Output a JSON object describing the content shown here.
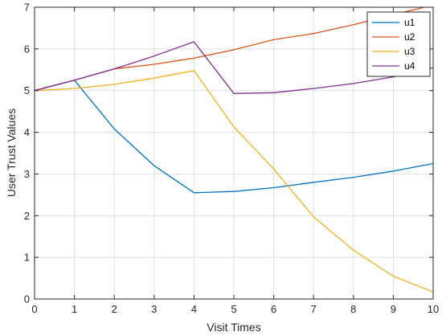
{
  "chart_data": {
    "type": "line",
    "title": "",
    "xlabel": "Visit Times",
    "ylabel": "User Trust Values",
    "xlim": [
      0,
      10
    ],
    "ylim": [
      0,
      7
    ],
    "xticks": [
      "0",
      "1",
      "2",
      "3",
      "4",
      "5",
      "6",
      "7",
      "8",
      "9",
      "10"
    ],
    "yticks": [
      "0",
      "1",
      "2",
      "3",
      "4",
      "5",
      "6",
      "7"
    ],
    "grid": true,
    "legend_position": "top-right",
    "x": [
      0,
      1,
      2,
      3,
      4,
      5,
      6,
      7,
      8,
      9,
      10
    ],
    "series": [
      {
        "name": "u1",
        "color": "#0072BD",
        "values": [
          5.0,
          5.25,
          4.08,
          3.2,
          2.55,
          2.58,
          2.67,
          2.8,
          2.92,
          3.07,
          3.25
        ]
      },
      {
        "name": "u2",
        "color": "#D95319",
        "values": [
          5.0,
          5.25,
          5.52,
          5.63,
          5.78,
          5.98,
          6.22,
          6.37,
          6.58,
          6.82,
          7.05
        ]
      },
      {
        "name": "u3",
        "color": "#EDB120",
        "values": [
          5.0,
          5.05,
          5.15,
          5.3,
          5.48,
          4.13,
          3.12,
          1.97,
          1.17,
          0.55,
          0.17
        ]
      },
      {
        "name": "u4",
        "color": "#7E2F8E",
        "values": [
          5.0,
          5.25,
          5.52,
          5.83,
          6.17,
          4.93,
          4.95,
          5.05,
          5.17,
          5.33,
          5.55
        ]
      }
    ]
  }
}
